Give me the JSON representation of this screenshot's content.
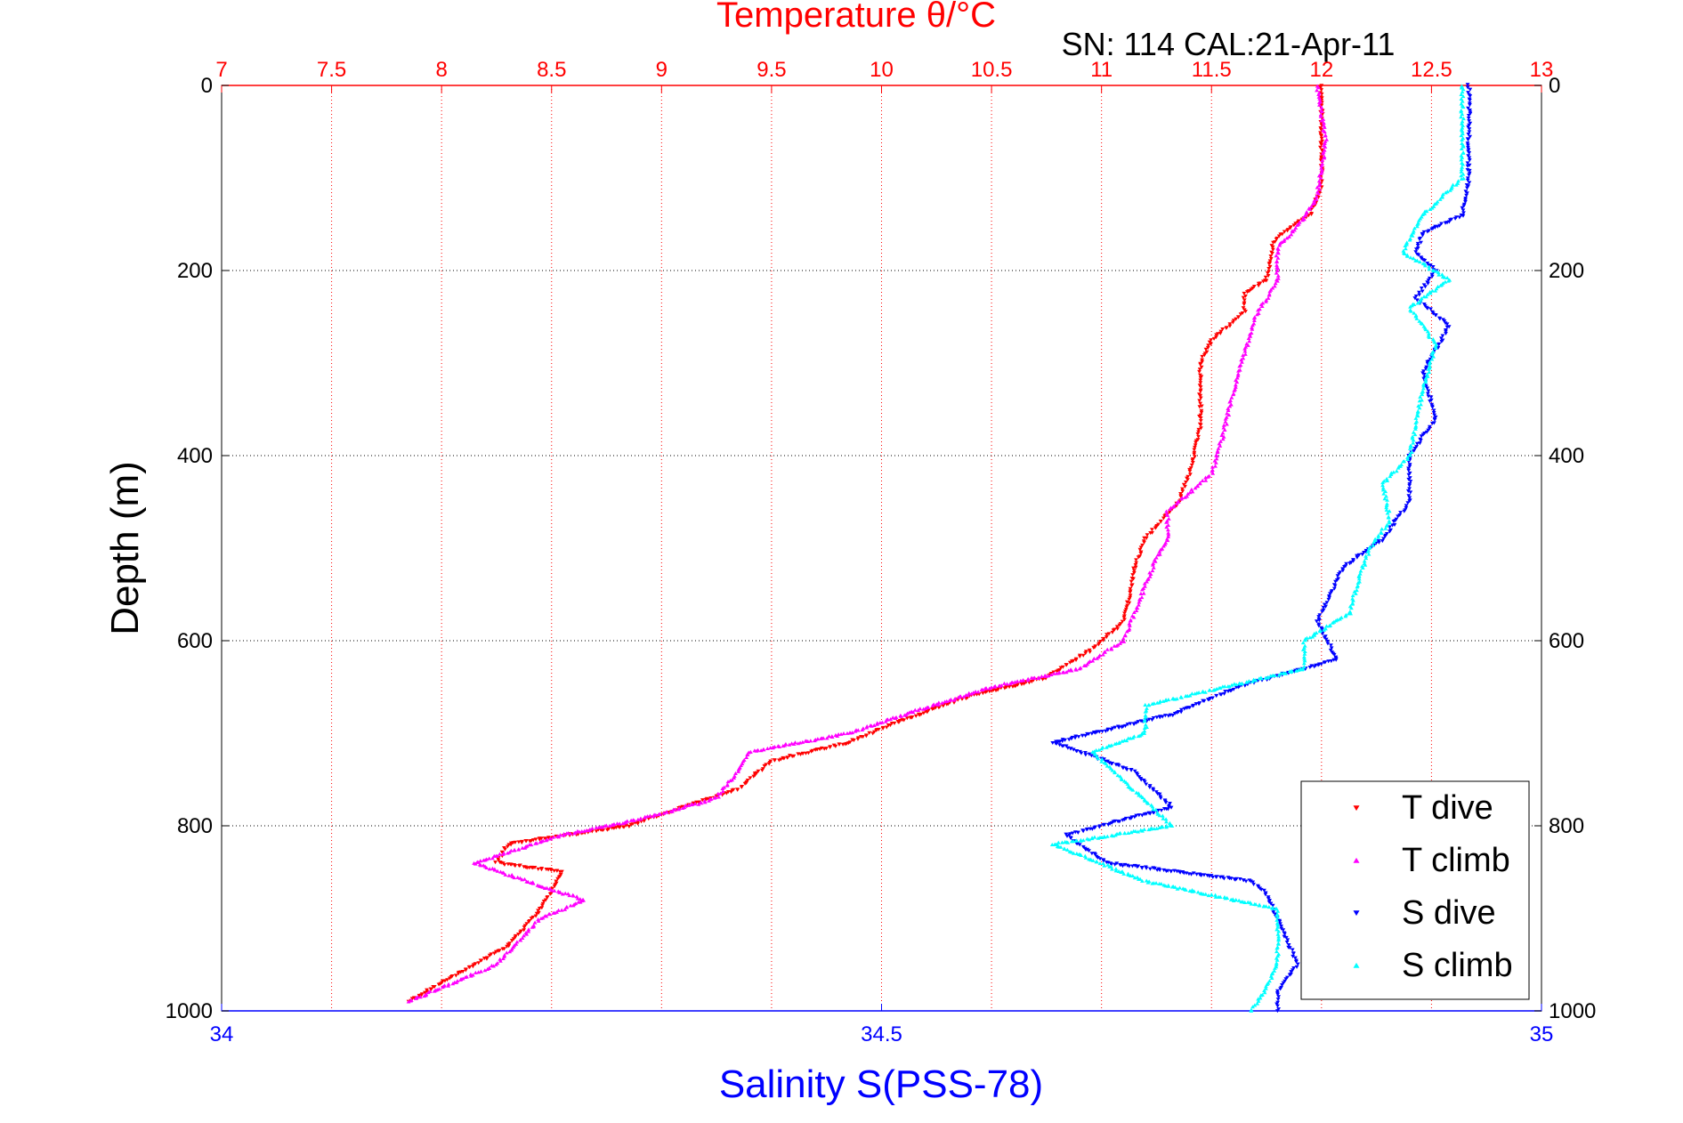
{
  "chart_data": {
    "type": "scatter",
    "title": "Temperature θ/°C",
    "subtitle": "SN: 114  CAL:21-Apr-11",
    "top_axis": {
      "label": "Temperature θ/°C",
      "range": [
        7,
        13
      ],
      "ticks": [
        "7",
        "7.5",
        "8",
        "8.5",
        "9",
        "9.5",
        "10",
        "10.5",
        "11",
        "11.5",
        "12",
        "12.5",
        "13"
      ]
    },
    "bottom_axis": {
      "label": "Salinity S(PSS-78)",
      "range": [
        34,
        35
      ],
      "ticks": [
        "34",
        "34.5",
        "35"
      ]
    },
    "y_axis": {
      "label": "Depth (m)",
      "range": [
        0,
        1000
      ],
      "reversed": true,
      "ticks": [
        "0",
        "200",
        "400",
        "600",
        "800",
        "1000"
      ]
    },
    "grid": true,
    "legend_position": "bottom-right",
    "series": [
      {
        "name": "T dive",
        "axis": "temperature",
        "color": "#ff0000",
        "marker": "triangle-down",
        "points": [
          [
            12.0,
            0
          ],
          [
            12.0,
            60
          ],
          [
            12.0,
            110
          ],
          [
            11.95,
            140
          ],
          [
            11.85,
            155
          ],
          [
            11.78,
            170
          ],
          [
            11.75,
            210
          ],
          [
            11.65,
            225
          ],
          [
            11.65,
            245
          ],
          [
            11.5,
            275
          ],
          [
            11.45,
            300
          ],
          [
            11.45,
            370
          ],
          [
            11.4,
            420
          ],
          [
            11.35,
            450
          ],
          [
            11.2,
            490
          ],
          [
            11.15,
            520
          ],
          [
            11.12,
            560
          ],
          [
            11.1,
            580
          ],
          [
            10.95,
            610
          ],
          [
            10.75,
            640
          ],
          [
            10.4,
            660
          ],
          [
            10.05,
            690
          ],
          [
            9.85,
            710
          ],
          [
            9.5,
            730
          ],
          [
            9.35,
            760
          ],
          [
            9.1,
            780
          ],
          [
            8.85,
            800
          ],
          [
            8.3,
            820
          ],
          [
            8.25,
            840
          ],
          [
            8.55,
            850
          ],
          [
            8.5,
            870
          ],
          [
            8.45,
            890
          ],
          [
            8.3,
            930
          ],
          [
            8.0,
            970
          ],
          [
            7.85,
            990
          ]
        ]
      },
      {
        "name": "T climb",
        "axis": "temperature",
        "color": "#ff00ff",
        "marker": "triangle-up",
        "points": [
          [
            11.98,
            0
          ],
          [
            12.02,
            60
          ],
          [
            11.98,
            120
          ],
          [
            11.9,
            150
          ],
          [
            11.8,
            175
          ],
          [
            11.8,
            210
          ],
          [
            11.7,
            250
          ],
          [
            11.65,
            290
          ],
          [
            11.6,
            330
          ],
          [
            11.55,
            380
          ],
          [
            11.5,
            420
          ],
          [
            11.3,
            460
          ],
          [
            11.3,
            490
          ],
          [
            11.25,
            510
          ],
          [
            11.15,
            570
          ],
          [
            11.1,
            600
          ],
          [
            10.9,
            630
          ],
          [
            10.5,
            650
          ],
          [
            10.1,
            680
          ],
          [
            9.85,
            700
          ],
          [
            9.4,
            720
          ],
          [
            9.35,
            740
          ],
          [
            9.25,
            770
          ],
          [
            8.95,
            790
          ],
          [
            8.55,
            810
          ],
          [
            8.15,
            840
          ],
          [
            8.45,
            865
          ],
          [
            8.65,
            880
          ],
          [
            8.45,
            900
          ],
          [
            8.25,
            950
          ],
          [
            7.85,
            990
          ]
        ]
      },
      {
        "name": "S dive",
        "axis": "salinity",
        "color": "#0000ff",
        "marker": "triangle-down",
        "points": [
          [
            34.945,
            0
          ],
          [
            34.945,
            100
          ],
          [
            34.94,
            140
          ],
          [
            34.91,
            160
          ],
          [
            34.905,
            180
          ],
          [
            34.92,
            200
          ],
          [
            34.905,
            230
          ],
          [
            34.93,
            260
          ],
          [
            34.91,
            310
          ],
          [
            34.92,
            360
          ],
          [
            34.9,
            400
          ],
          [
            34.9,
            450
          ],
          [
            34.88,
            490
          ],
          [
            34.85,
            520
          ],
          [
            34.84,
            550
          ],
          [
            34.83,
            580
          ],
          [
            34.845,
            620
          ],
          [
            34.77,
            650
          ],
          [
            34.72,
            680
          ],
          [
            34.63,
            710
          ],
          [
            34.69,
            740
          ],
          [
            34.72,
            780
          ],
          [
            34.64,
            810
          ],
          [
            34.67,
            840
          ],
          [
            34.78,
            860
          ],
          [
            34.79,
            870
          ],
          [
            34.8,
            900
          ],
          [
            34.815,
            950
          ],
          [
            34.8,
            980
          ],
          [
            34.8,
            1000
          ]
        ]
      },
      {
        "name": "S climb",
        "axis": "salinity",
        "color": "#00ffff",
        "marker": "triangle-up",
        "points": [
          [
            34.94,
            0
          ],
          [
            34.94,
            100
          ],
          [
            34.91,
            140
          ],
          [
            34.895,
            180
          ],
          [
            34.93,
            210
          ],
          [
            34.9,
            240
          ],
          [
            34.92,
            280
          ],
          [
            34.91,
            330
          ],
          [
            34.9,
            400
          ],
          [
            34.88,
            430
          ],
          [
            34.885,
            470
          ],
          [
            34.87,
            500
          ],
          [
            34.86,
            540
          ],
          [
            34.855,
            570
          ],
          [
            34.82,
            600
          ],
          [
            34.82,
            630
          ],
          [
            34.7,
            670
          ],
          [
            34.7,
            700
          ],
          [
            34.66,
            720
          ],
          [
            34.69,
            760
          ],
          [
            34.72,
            800
          ],
          [
            34.63,
            820
          ],
          [
            34.7,
            860
          ],
          [
            34.8,
            890
          ],
          [
            34.8,
            950
          ],
          [
            34.79,
            980
          ],
          [
            34.78,
            1000
          ]
        ]
      }
    ]
  }
}
